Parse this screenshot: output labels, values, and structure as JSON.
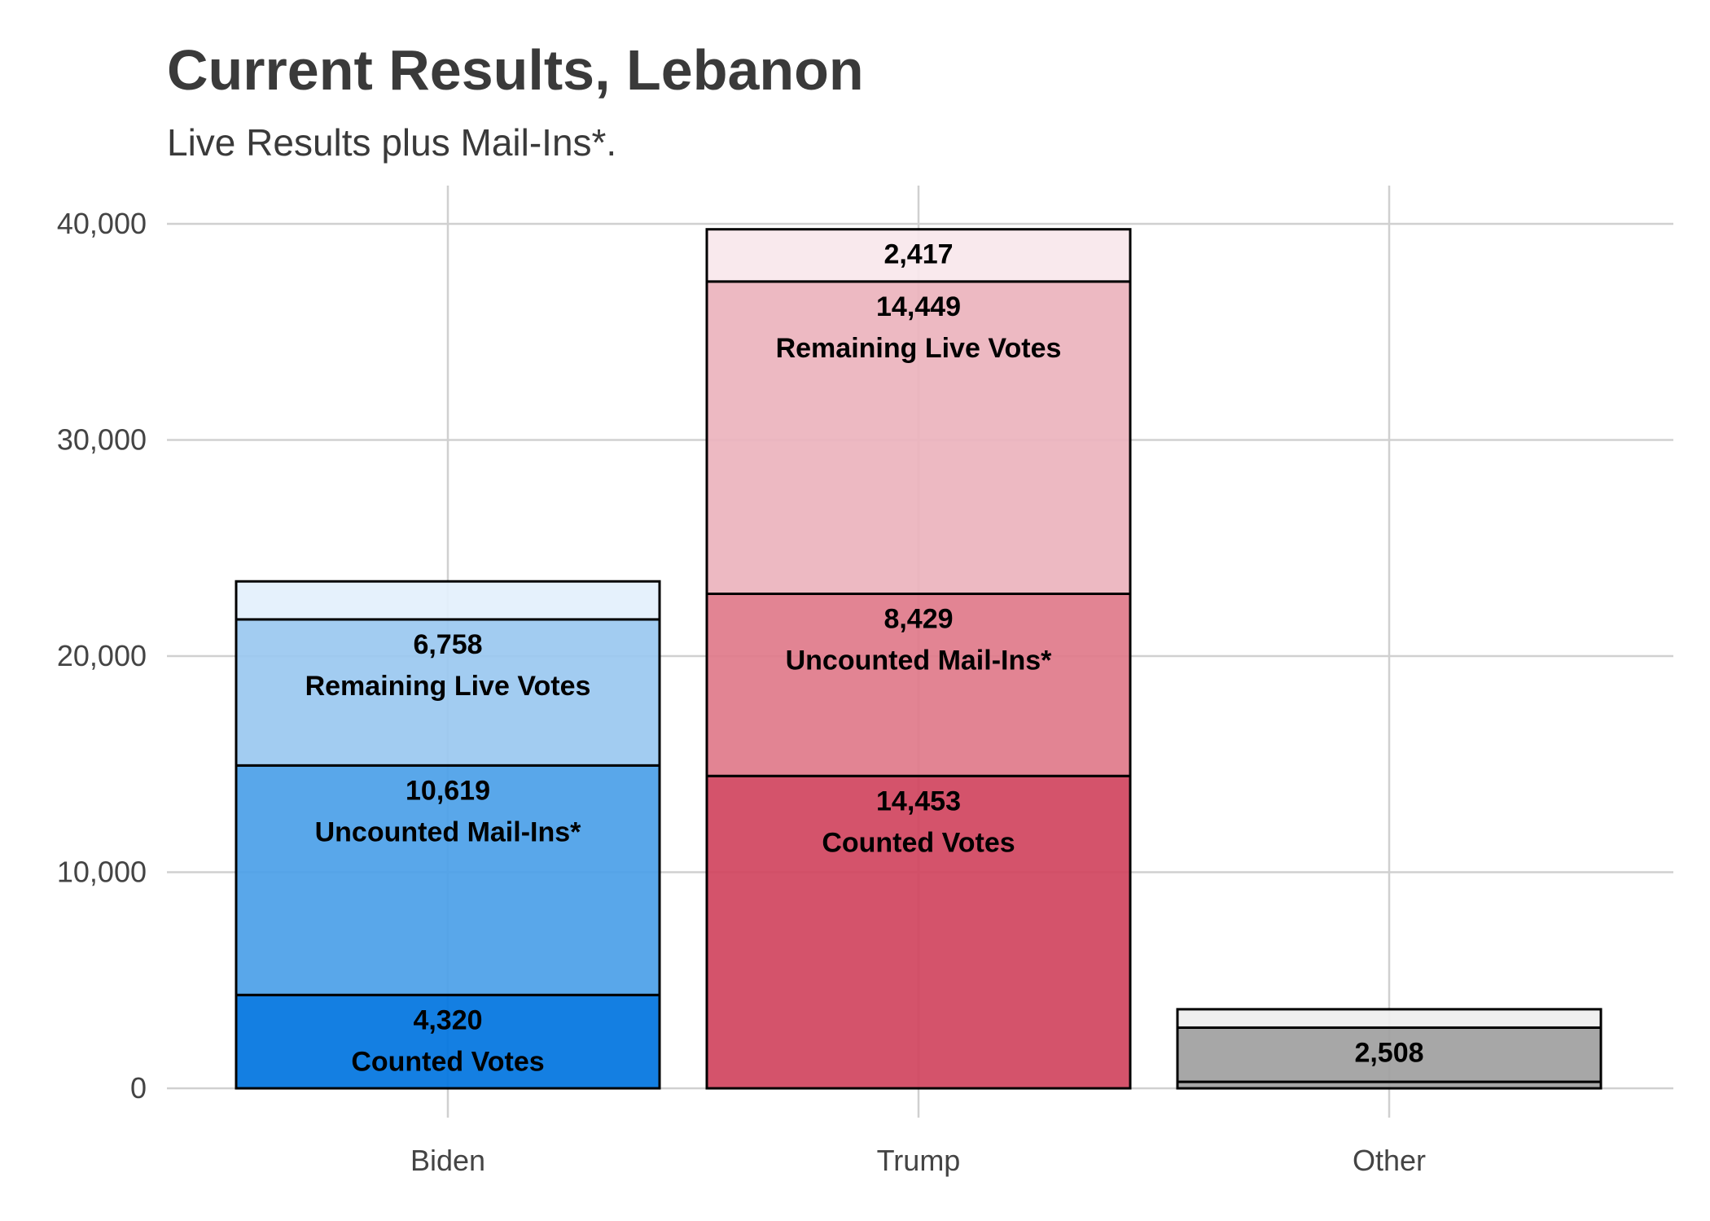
{
  "chart_data": {
    "type": "bar",
    "stacked": true,
    "title": "Current Results, Lebanon",
    "subtitle": "Live Results plus Mail-Ins*.",
    "xlabel": "",
    "ylabel": "",
    "ylim": [
      0,
      41700
    ],
    "yticks": [
      0,
      10000,
      20000,
      30000,
      40000
    ],
    "ytick_labels": [
      "0",
      "10,000",
      "20,000",
      "30,000",
      "40,000"
    ],
    "grid": true,
    "categories": [
      "Biden",
      "Trump",
      "Other"
    ],
    "bars": [
      {
        "category": "Biden",
        "segments": [
          {
            "kind": "Counted Votes",
            "value": 4320,
            "value_label": "4,320",
            "text": "Counted Votes",
            "color": "#0074E0"
          },
          {
            "kind": "Uncounted Mail-Ins*",
            "value": 10619,
            "value_label": "10,619",
            "text": "Uncounted Mail-Ins*",
            "color": "#4BA0E8"
          },
          {
            "kind": "Remaining Live Votes",
            "value": 6758,
            "value_label": "6,758",
            "text": "Remaining Live Votes",
            "color": "#9AC8F0"
          },
          {
            "kind": "Top",
            "value": 1760,
            "value_label": "",
            "text": "",
            "color": "#E3F0FC"
          }
        ]
      },
      {
        "category": "Trump",
        "segments": [
          {
            "kind": "Counted Votes",
            "value": 14453,
            "value_label": "14,453",
            "text": "Counted Votes",
            "color": "#D0445E"
          },
          {
            "kind": "Uncounted Mail-Ins*",
            "value": 8429,
            "value_label": "8,429",
            "text": "Uncounted Mail-Ins*",
            "color": "#DF7A8A"
          },
          {
            "kind": "Remaining Live Votes",
            "value": 14449,
            "value_label": "14,449",
            "text": "Remaining Live Votes",
            "color": "#ECB3BD"
          },
          {
            "kind": "Top",
            "value": 2417,
            "value_label": "2,417",
            "text": "",
            "color": "#F9E7EB"
          }
        ]
      },
      {
        "category": "Other",
        "segments": [
          {
            "kind": "Counted Votes",
            "value": 300,
            "value_label": "",
            "text": "",
            "color": "#A0A0A0"
          },
          {
            "kind": "Uncounted Mail-Ins*",
            "value": 2508,
            "value_label": "2,508",
            "text": "",
            "color": "#A0A0A0"
          },
          {
            "kind": "Top",
            "value": 850,
            "value_label": "",
            "text": "",
            "color": "#EEEEEE"
          }
        ]
      }
    ]
  }
}
